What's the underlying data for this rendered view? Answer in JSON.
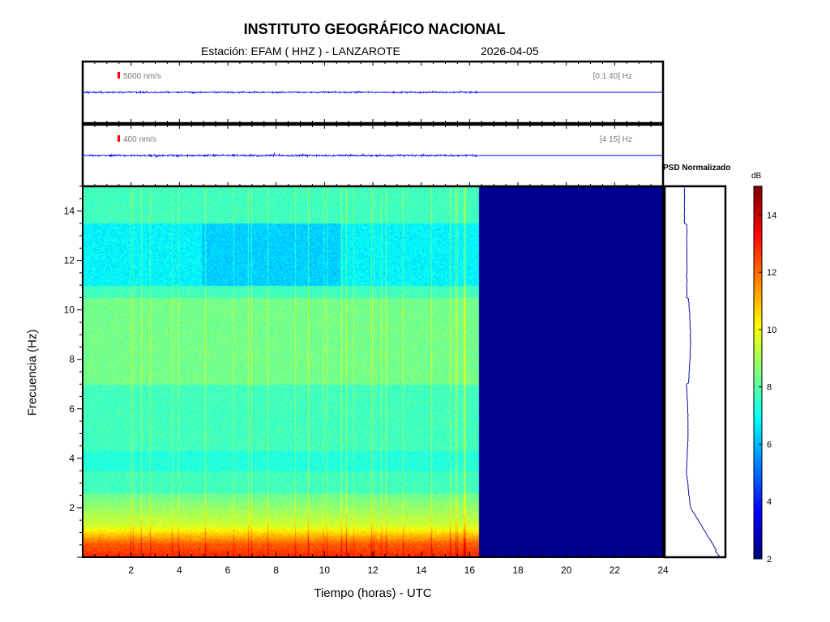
{
  "header": {
    "title": "INSTITUTO GEOGRÁFICO NACIONAL",
    "station": "Estación:  EFAM ( HHZ ) - LANZAROTE",
    "date": "2026-04-05"
  },
  "chart_data": [
    {
      "type": "line",
      "name": "seismogram-broadband",
      "scale_label": "5000 nm/s",
      "band_label": "[0.1 40] Hz",
      "xlim": [
        0,
        24
      ],
      "data_end_hour": 16.4,
      "color": "#0000ff",
      "scale_color": "#ff0000"
    },
    {
      "type": "line",
      "name": "seismogram-filtered",
      "scale_label": "400 nm/s",
      "band_label": "[4 15] Hz",
      "xlim": [
        0,
        24
      ],
      "data_end_hour": 16.4,
      "color": "#0000ff",
      "scale_color": "#ff0000"
    },
    {
      "type": "heatmap",
      "name": "spectrogram",
      "xlabel": "Tiempo (horas) - UTC",
      "ylabel": "Frecuencia  (Hz)",
      "xlim": [
        0,
        24
      ],
      "ylim": [
        0,
        15
      ],
      "xticks": [
        "2",
        "4",
        "6",
        "8",
        "10",
        "12",
        "14",
        "16",
        "18",
        "20",
        "22",
        "24"
      ],
      "yticks": [
        "2",
        "4",
        "6",
        "8",
        "10",
        "12",
        "14"
      ],
      "data_end_hour": 16.4,
      "empty_color": "#00008f",
      "colormap": "jet"
    },
    {
      "type": "line",
      "name": "psd-normalized",
      "title": "PSD Normalizado",
      "ylim": [
        0,
        15
      ],
      "color": "#1010a0"
    },
    {
      "type": "heatmap",
      "name": "colorbar",
      "unit": "dB",
      "range": [
        2,
        15
      ],
      "ticks": [
        "2",
        "4",
        "6",
        "8",
        "10",
        "12",
        "14"
      ]
    }
  ]
}
